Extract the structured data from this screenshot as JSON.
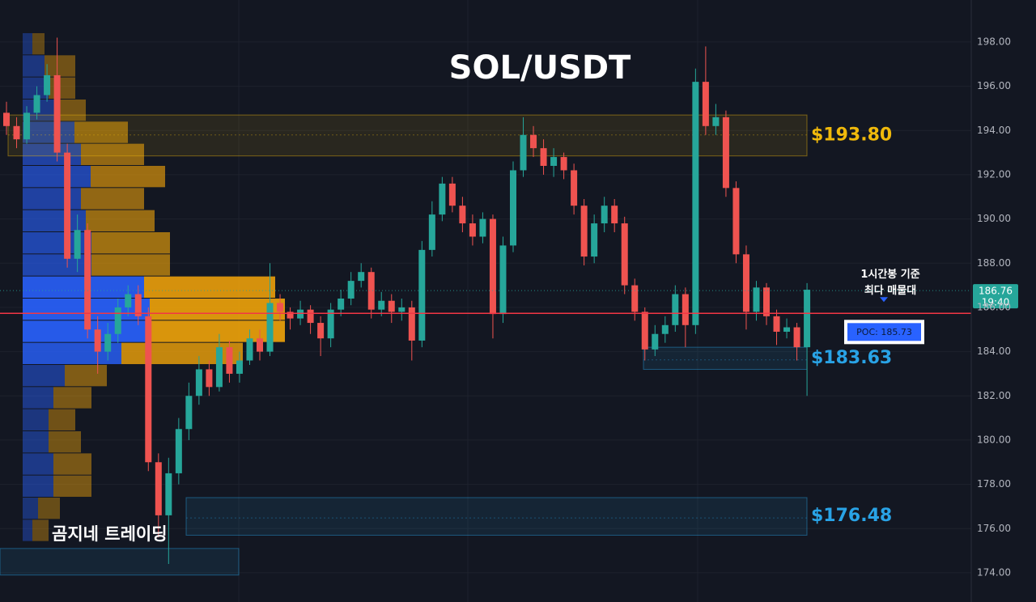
{
  "chart_data": {
    "type": "candlestick",
    "title": "SOL/USDT",
    "watermark": "곰지네 트레이딩",
    "ylim": [
      172.68,
      199.9
    ],
    "yticks": [
      {
        "value": 174,
        "label": "174.00"
      },
      {
        "value": 176,
        "label": "176.00"
      },
      {
        "value": 178,
        "label": "178.00"
      },
      {
        "value": 180,
        "label": "180.00"
      },
      {
        "value": 182,
        "label": "182.00"
      },
      {
        "value": 184,
        "label": "184.00"
      },
      {
        "value": 186,
        "label": "186.00"
      },
      {
        "value": 188,
        "label": "188.00"
      },
      {
        "value": 190,
        "label": "190.00"
      },
      {
        "value": 192,
        "label": "192.00"
      },
      {
        "value": 194,
        "label": "194.00"
      },
      {
        "value": 196,
        "label": "196.00"
      },
      {
        "value": 198,
        "label": "198.00"
      }
    ],
    "grid": true,
    "up_color": "#26a69a",
    "down_color": "#ef5350",
    "candles": [
      [
        194.8,
        195.3,
        193.8,
        194.2
      ],
      [
        194.2,
        194.6,
        193.2,
        193.6
      ],
      [
        193.6,
        195.1,
        193.4,
        194.8
      ],
      [
        194.8,
        196.0,
        194.5,
        195.6
      ],
      [
        195.6,
        197.0,
        195.3,
        196.5
      ],
      [
        196.5,
        198.2,
        192.6,
        193.0
      ],
      [
        193.0,
        193.4,
        187.8,
        188.2
      ],
      [
        188.2,
        190.2,
        187.6,
        189.5
      ],
      [
        189.5,
        189.8,
        184.6,
        185.0
      ],
      [
        185.0,
        185.6,
        183.0,
        184.0
      ],
      [
        184.0,
        185.3,
        183.6,
        184.8
      ],
      [
        184.8,
        186.4,
        184.4,
        186.0
      ],
      [
        186.0,
        187.0,
        185.6,
        186.6
      ],
      [
        186.6,
        187.0,
        185.2,
        185.6
      ],
      [
        185.6,
        186.0,
        178.6,
        179.0
      ],
      [
        179.0,
        179.4,
        175.6,
        176.6
      ],
      [
        176.6,
        179.2,
        174.4,
        178.5
      ],
      [
        178.5,
        181.0,
        178.0,
        180.5
      ],
      [
        180.5,
        182.6,
        180.0,
        182.0
      ],
      [
        182.0,
        183.8,
        181.6,
        183.2
      ],
      [
        183.2,
        183.6,
        182.0,
        182.4
      ],
      [
        182.4,
        184.8,
        182.2,
        184.2
      ],
      [
        184.2,
        184.5,
        182.6,
        183.0
      ],
      [
        183.0,
        184.0,
        182.6,
        183.6
      ],
      [
        183.6,
        185.0,
        183.4,
        184.6
      ],
      [
        184.6,
        185.0,
        183.6,
        184.0
      ],
      [
        184.0,
        188.0,
        183.8,
        186.2
      ],
      [
        186.2,
        186.6,
        185.4,
        185.8
      ],
      [
        185.8,
        186.0,
        185.0,
        185.5
      ],
      [
        185.5,
        186.3,
        185.2,
        185.9
      ],
      [
        185.9,
        186.1,
        184.8,
        185.3
      ],
      [
        185.3,
        185.6,
        183.8,
        184.6
      ],
      [
        184.6,
        186.2,
        184.2,
        185.9
      ],
      [
        185.9,
        186.8,
        185.6,
        186.4
      ],
      [
        186.4,
        187.6,
        186.1,
        187.2
      ],
      [
        187.2,
        188.0,
        186.9,
        187.6
      ],
      [
        187.6,
        187.8,
        185.5,
        185.9
      ],
      [
        185.9,
        186.7,
        185.6,
        186.3
      ],
      [
        186.3,
        186.6,
        185.3,
        185.8
      ],
      [
        185.8,
        186.4,
        185.4,
        186.0
      ],
      [
        186.0,
        186.3,
        183.6,
        184.5
      ],
      [
        184.5,
        189.0,
        184.2,
        188.6
      ],
      [
        188.6,
        190.8,
        188.3,
        190.2
      ],
      [
        190.2,
        191.9,
        189.9,
        191.6
      ],
      [
        191.6,
        191.9,
        190.3,
        190.6
      ],
      [
        190.6,
        191.0,
        189.4,
        189.8
      ],
      [
        189.8,
        190.2,
        188.8,
        189.2
      ],
      [
        189.2,
        190.3,
        188.9,
        190.0
      ],
      [
        190.0,
        190.2,
        184.6,
        185.7
      ],
      [
        185.7,
        189.2,
        185.3,
        188.8
      ],
      [
        188.8,
        192.6,
        188.5,
        192.2
      ],
      [
        192.2,
        194.6,
        191.9,
        193.8
      ],
      [
        193.8,
        194.2,
        192.8,
        193.2
      ],
      [
        193.2,
        193.6,
        192.0,
        192.4
      ],
      [
        192.4,
        193.2,
        191.9,
        192.8
      ],
      [
        192.8,
        193.0,
        191.8,
        192.2
      ],
      [
        192.2,
        192.5,
        190.2,
        190.6
      ],
      [
        190.6,
        190.9,
        187.9,
        188.3
      ],
      [
        188.3,
        190.2,
        188.0,
        189.8
      ],
      [
        189.8,
        191.0,
        189.4,
        190.6
      ],
      [
        190.6,
        190.9,
        189.4,
        189.8
      ],
      [
        189.8,
        190.1,
        186.6,
        187.0
      ],
      [
        187.0,
        187.3,
        185.4,
        185.8
      ],
      [
        185.8,
        186.0,
        183.6,
        184.1
      ],
      [
        184.1,
        185.2,
        183.8,
        184.8
      ],
      [
        184.8,
        185.6,
        184.4,
        185.2
      ],
      [
        185.2,
        187.0,
        184.9,
        186.6
      ],
      [
        186.6,
        186.9,
        184.2,
        185.2
      ],
      [
        185.2,
        196.8,
        184.8,
        196.2
      ],
      [
        196.2,
        197.8,
        193.8,
        194.2
      ],
      [
        194.2,
        195.2,
        193.8,
        194.6
      ],
      [
        194.6,
        194.9,
        191.0,
        191.4
      ],
      [
        191.4,
        191.7,
        188.0,
        188.4
      ],
      [
        188.4,
        188.8,
        185.0,
        185.8
      ],
      [
        185.8,
        187.2,
        185.4,
        186.9
      ],
      [
        186.9,
        187.1,
        185.2,
        185.6
      ],
      [
        185.6,
        185.9,
        184.3,
        184.9
      ],
      [
        184.9,
        185.5,
        184.6,
        185.1
      ],
      [
        185.1,
        185.3,
        183.6,
        184.2
      ],
      [
        184.2,
        187.1,
        182.0,
        186.8
      ]
    ],
    "volume_profile": {
      "levels": [
        198.4,
        197.4,
        196.4,
        195.4,
        194.4,
        193.4,
        192.4,
        191.4,
        190.4,
        189.4,
        188.4,
        187.4,
        186.4,
        185.4,
        184.4,
        183.4,
        182.4,
        181.4,
        180.4,
        179.4,
        178.4,
        177.4,
        176.4
      ],
      "buy": [
        12,
        27,
        32,
        42,
        64,
        72,
        84,
        72,
        78,
        85,
        85,
        150,
        157,
        157,
        122,
        52,
        38,
        32,
        32,
        38,
        38,
        19,
        12
      ],
      "sell": [
        15,
        38,
        33,
        36,
        66,
        78,
        92,
        78,
        85,
        97,
        97,
        162,
        167,
        167,
        150,
        52,
        47,
        33,
        40,
        47,
        47,
        27,
        20
      ],
      "buy_color": "#2962ff",
      "sell_color": "#f0a30a"
    },
    "zones": [
      {
        "top": 194.7,
        "bottom": 192.85,
        "value": 193.8,
        "label": "$193.80",
        "color": "#f0b90b"
      },
      {
        "top": 184.2,
        "bottom": 183.2,
        "value": 183.63,
        "label": "$183.63",
        "color": "#29a3e6"
      },
      {
        "top": 177.4,
        "bottom": 175.7,
        "value": 176.48,
        "label": "$176.48",
        "color": "#29a3e6"
      },
      {
        "top": 175.1,
        "bottom": 173.9,
        "color": "#29a3e6"
      }
    ],
    "poc": {
      "value": 185.73,
      "label": "POC: 185.73",
      "note": [
        "1시간봉 기준",
        "최다 매물대"
      ],
      "color": "#f23645"
    },
    "last": {
      "price": 186.76,
      "time": "19:40",
      "color": "#26a69a"
    }
  }
}
